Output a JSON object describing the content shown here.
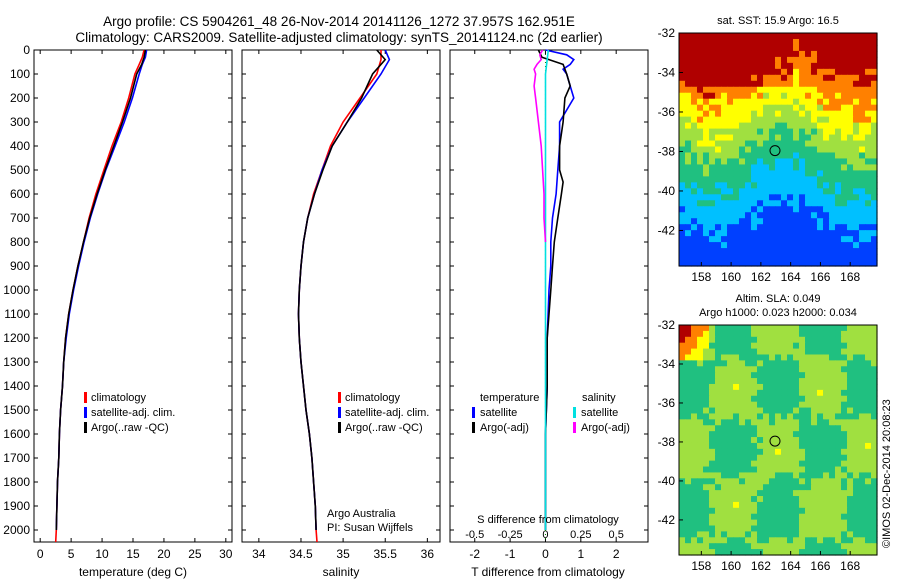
{
  "header": {
    "line1": "Argo profile: CS 5904261_48 26-Nov-2014 20141126_1272 37.957S 162.951E",
    "line2": "Climatology: CARS2009. Satellite-adjusted climatology: synTS_20141124.nc (2d earlier)"
  },
  "colors": {
    "climatology": "#ff0000",
    "satellite": "#0000ff",
    "argo": "#000000",
    "salinity_satellite": "#00e0e0",
    "salinity_argo": "#ff00ff"
  },
  "depth_axis": {
    "ylim": [
      0,
      2050
    ],
    "ticks": [
      0,
      100,
      200,
      300,
      400,
      500,
      600,
      700,
      800,
      900,
      1000,
      1100,
      1200,
      1300,
      1400,
      1500,
      1600,
      1700,
      1800,
      1900,
      2000
    ]
  },
  "legend_profile": {
    "items": [
      {
        "label": "climatology",
        "color": "#ff0000"
      },
      {
        "label": "satellite-adj. clim.",
        "color": "#0000ff"
      },
      {
        "label": "Argo(..raw -QC)",
        "color": "#000000"
      }
    ]
  },
  "legend_diff": {
    "temperature_title": "temperature",
    "salinity_title": "salinity",
    "items": [
      {
        "label": "satellite",
        "color": "#0000ff"
      },
      {
        "label": "Argo(-adj)",
        "color": "#000000"
      },
      {
        "label": "satellite",
        "color": "#00e0e0"
      },
      {
        "label": "Argo(-adj)",
        "color": "#ff00ff"
      }
    ]
  },
  "credit": {
    "line1": "Argo Australia",
    "line2": "PI: Susan Wijffels"
  },
  "watermark": "©IMOS 02-Dec-2014 20:08:23",
  "chart_data": [
    {
      "type": "line",
      "name": "temperature",
      "xlabel": "temperature (deg C)",
      "ylabel": "",
      "xlim": [
        -1,
        31
      ],
      "xticks": [
        0,
        5,
        10,
        15,
        20,
        25,
        30
      ],
      "ylim": [
        0,
        2050
      ],
      "series": [
        {
          "name": "climatology",
          "color": "#ff0000",
          "depth": [
            0,
            30,
            60,
            100,
            200,
            300,
            400,
            500,
            600,
            700,
            800,
            900,
            1000,
            1100,
            1200,
            1300,
            1400,
            1500,
            1600,
            1700,
            1800,
            1900,
            2000,
            2050
          ],
          "values": [
            16.8,
            16.5,
            16.0,
            15.3,
            14.3,
            13.1,
            11.6,
            10.3,
            9.0,
            7.9,
            7.0,
            6.1,
            5.3,
            4.6,
            4.1,
            3.8,
            3.6,
            3.3,
            3.1,
            3.0,
            2.8,
            2.7,
            2.6,
            2.5
          ]
        },
        {
          "name": "satellite-adj. clim.",
          "color": "#0000ff",
          "depth": [
            0,
            30,
            60,
            100,
            200,
            300,
            400,
            500,
            600,
            700,
            800,
            900,
            1000,
            1100,
            1200,
            1300,
            1400,
            1500,
            1600,
            1700,
            1800,
            1900,
            2000
          ],
          "values": [
            17.2,
            17.0,
            16.5,
            16.0,
            14.9,
            13.6,
            12.1,
            10.6,
            9.3,
            8.1,
            7.1,
            6.2,
            5.4,
            4.7,
            4.2,
            3.8,
            3.6,
            3.3,
            3.1,
            3.0,
            2.8,
            2.7,
            2.6
          ]
        },
        {
          "name": "Argo(..raw -QC)",
          "color": "#000000",
          "depth": [
            0,
            30,
            60,
            100,
            200,
            300,
            400,
            500,
            600,
            700,
            800,
            900,
            1000,
            1100,
            1200,
            1300,
            1400,
            1500,
            1600,
            1700,
            1800,
            1900,
            2000
          ],
          "values": [
            17.0,
            16.8,
            16.4,
            15.6,
            14.6,
            13.3,
            11.9,
            10.5,
            9.2,
            8.0,
            7.0,
            6.1,
            5.3,
            4.6,
            4.1,
            3.8,
            3.6,
            3.3,
            3.1,
            3.0,
            2.8,
            2.7,
            2.6
          ]
        }
      ]
    },
    {
      "type": "line",
      "name": "salinity",
      "xlabel": "salinity",
      "ylabel": "",
      "xlim": [
        33.8,
        36.15
      ],
      "xticks": [
        34,
        34.5,
        35,
        35.5,
        36
      ],
      "ylim": [
        0,
        2050
      ],
      "series": [
        {
          "name": "climatology",
          "color": "#ff0000",
          "depth": [
            0,
            40,
            100,
            200,
            300,
            400,
            500,
            600,
            700,
            800,
            900,
            1000,
            1100,
            1200,
            1300,
            1400,
            1500,
            1600,
            1700,
            1800,
            1900,
            2000,
            2050
          ],
          "values": [
            35.45,
            35.45,
            35.4,
            35.2,
            35.0,
            34.85,
            34.75,
            34.65,
            34.58,
            34.53,
            34.5,
            34.48,
            34.47,
            34.48,
            34.5,
            34.53,
            34.56,
            34.6,
            34.63,
            34.65,
            34.67,
            34.68,
            34.69
          ]
        },
        {
          "name": "satellite-adj. clim.",
          "color": "#0000ff",
          "depth": [
            0,
            40,
            100,
            200,
            300,
            400,
            500,
            600,
            700,
            800,
            900,
            1000,
            1100,
            1200,
            1300,
            1400,
            1500,
            1600,
            1700,
            1800,
            1900,
            2000
          ],
          "values": [
            35.5,
            35.55,
            35.45,
            35.25,
            35.05,
            34.87,
            34.75,
            34.66,
            34.58,
            34.53,
            34.5,
            34.48,
            34.47,
            34.48,
            34.5,
            34.53,
            34.56,
            34.6,
            34.63,
            34.65,
            34.67,
            34.68
          ]
        },
        {
          "name": "Argo(..raw -QC)",
          "color": "#000000",
          "depth": [
            0,
            40,
            100,
            200,
            300,
            400,
            500,
            600,
            700,
            800,
            900,
            1000,
            1100,
            1200,
            1300,
            1400,
            1500,
            1600,
            1700,
            1800,
            1900,
            2000
          ],
          "values": [
            35.4,
            35.5,
            35.35,
            35.22,
            35.05,
            34.87,
            34.76,
            34.66,
            34.58,
            34.53,
            34.5,
            34.48,
            34.47,
            34.48,
            34.5,
            34.53,
            34.56,
            34.6,
            34.63,
            34.65,
            34.67,
            34.68
          ]
        }
      ]
    },
    {
      "type": "line",
      "name": "difference from climatology",
      "xlabel": "T difference from climatology",
      "xlabel_top": "S difference from climatology",
      "xlim": [
        -2.7,
        2.9
      ],
      "xticks": [
        -2,
        -1,
        0,
        1,
        2
      ],
      "xticks_s": [
        -0.5,
        -0.25,
        0,
        0.25,
        0.5
      ],
      "xtick_labels_s": [
        "-0.5",
        "-0.25",
        "0",
        "0.25",
        "0.5"
      ],
      "ylim": [
        0,
        2050
      ],
      "series": [
        {
          "name": "temperature satellite",
          "color": "#0000ff",
          "depth": [
            0,
            20,
            40,
            60,
            80,
            100,
            150,
            200,
            300,
            400,
            500,
            600,
            700,
            800,
            900,
            1000,
            1200,
            1400,
            1600,
            1800,
            2000
          ],
          "values": [
            0.0,
            0.6,
            0.8,
            0.7,
            0.5,
            0.6,
            0.7,
            0.8,
            0.4,
            0.4,
            0.35,
            0.3,
            0.2,
            0.15,
            0.15,
            0.1,
            0.05,
            0.05,
            0.0,
            0.0,
            0.0
          ]
        },
        {
          "name": "temperature Argo(-adj)",
          "color": "#000000",
          "depth": [
            0,
            30,
            60,
            100,
            150,
            200,
            300,
            400,
            500,
            550,
            600,
            700,
            800,
            900,
            1000,
            1100,
            1200,
            1400,
            1600,
            1800,
            2000
          ],
          "values": [
            -0.2,
            -0.1,
            0.5,
            0.6,
            0.7,
            0.55,
            0.5,
            0.4,
            0.4,
            0.5,
            0.45,
            0.35,
            0.25,
            0.2,
            0.15,
            0.1,
            0.05,
            0.05,
            0.0,
            0.0,
            0.0
          ]
        },
        {
          "name": "salinity satellite",
          "color": "#00e0e0",
          "depth": [
            0,
            50,
            100,
            200,
            300,
            400,
            600,
            800,
            1000,
            1200,
            1400,
            1600,
            1800,
            2000
          ],
          "values": [
            0.02,
            0.01,
            0.0,
            0.0,
            0.0,
            0.0,
            0.0,
            0.0,
            0.0,
            0.0,
            0.0,
            0.0,
            0.0,
            0.0
          ]
        },
        {
          "name": "salinity Argo(-adj)",
          "color": "#ff00ff",
          "depth": [
            0,
            20,
            40,
            60,
            80,
            100,
            150,
            200,
            250,
            300,
            400,
            500,
            600,
            700,
            800
          ],
          "values": [
            -0.02,
            -0.04,
            -0.03,
            -0.06,
            -0.08,
            -0.07,
            -0.08,
            -0.07,
            -0.06,
            -0.05,
            -0.03,
            -0.02,
            -0.01,
            -0.01,
            0.0
          ]
        }
      ]
    },
    {
      "type": "heatmap",
      "name": "satellite SST",
      "title": "sat. SST: 15.9  Argo: 16.5",
      "xlim": [
        156.5,
        169.8
      ],
      "ylim": [
        -43.8,
        -32
      ],
      "xticks": [
        158,
        160,
        162,
        164,
        166,
        168
      ],
      "yticks": [
        -32,
        -34,
        -36,
        -38,
        -40,
        -42
      ],
      "marker": {
        "lon": 162.951,
        "lat": -37.957
      }
    },
    {
      "type": "heatmap",
      "name": "altimetry SLA",
      "title1": "Altim. SLA: 0.049",
      "title2": "Argo h1000: 0.023 h2000: 0.034",
      "xlim": [
        156.5,
        169.8
      ],
      "ylim": [
        -43.8,
        -32
      ],
      "xticks": [
        158,
        160,
        162,
        164,
        166,
        168
      ],
      "yticks": [
        -32,
        -34,
        -36,
        -38,
        -40,
        -42
      ],
      "marker": {
        "lon": 162.951,
        "lat": -37.957
      }
    }
  ]
}
